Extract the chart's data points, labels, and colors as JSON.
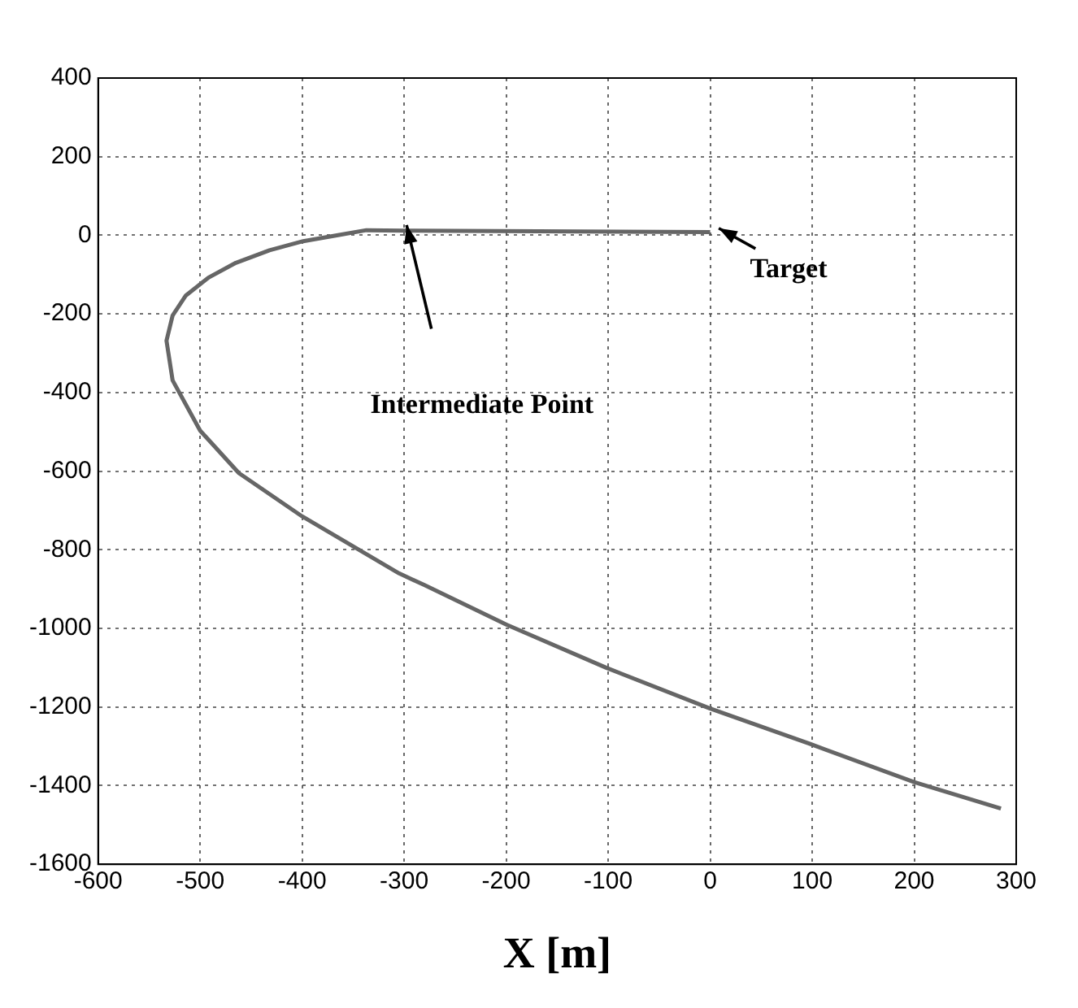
{
  "chart_data": {
    "type": "line",
    "xlabel": "X [m]",
    "xlim": [
      -600,
      300
    ],
    "xticks": [
      -600,
      -500,
      -400,
      -300,
      -200,
      -100,
      0,
      100,
      200,
      300
    ],
    "ylim": [
      -1600,
      400
    ],
    "yticks": [
      -1600,
      -1400,
      -1200,
      -1000,
      -800,
      -600,
      -400,
      -200,
      0,
      200,
      400
    ],
    "grid": true,
    "line_style": "solid",
    "series": [
      {
        "color": "#666666",
        "x": [
          0,
          -300,
          -337,
          -366,
          -399,
          -432,
          -465,
          -492,
          -514,
          -527,
          -533,
          -527,
          -500,
          -462,
          -400,
          -305,
          -280,
          -200,
          -102,
          0,
          98,
          200,
          285
        ],
        "values": [
          8,
          12,
          13,
          0,
          -15,
          -38,
          -70,
          -108,
          -153,
          -204,
          -268,
          -369,
          -497,
          -605,
          -715,
          -860,
          -890,
          -990,
          -1100,
          -1204,
          -1294,
          -1391,
          -1458
        ]
      }
    ],
    "annotations": [
      "Intermediate Point",
      "Target"
    ]
  }
}
